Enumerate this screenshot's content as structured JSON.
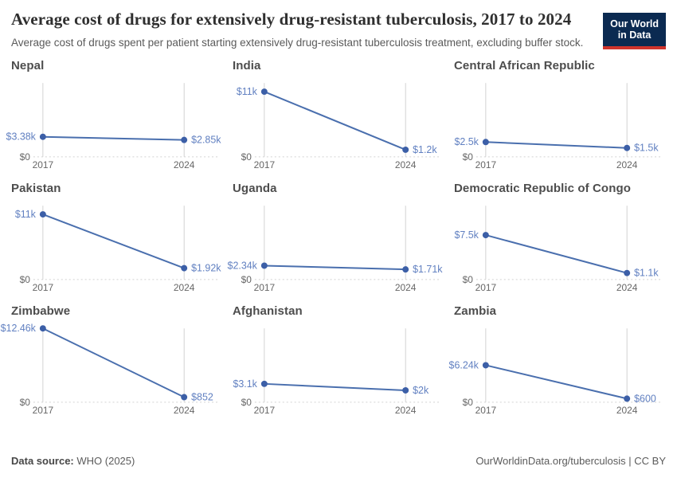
{
  "header": {
    "title": "Average cost of drugs for extensively drug-resistant tuberculosis, 2017 to 2024",
    "subtitle": "Average cost of drugs spent per patient starting extensively drug-resistant tuberculosis treatment, excluding buffer stock."
  },
  "logo": {
    "line1": "Our World",
    "line2": "in Data"
  },
  "footer": {
    "datasource_label": "Data source:",
    "datasource_value": "WHO (2025)",
    "credit_url": "OurWorldinData.org/tuberculosis",
    "credit_separator": " | ",
    "credit_license": "CC BY"
  },
  "chart_data": {
    "type": "line",
    "title": "Average cost of drugs for extensively drug-resistant tuberculosis, 2017 to 2024",
    "x": [
      2017,
      2024
    ],
    "x_labels": [
      "2017",
      "2024"
    ],
    "ylim": [
      0,
      12460
    ],
    "y_zero_label": "$0",
    "unit": "US$ per patient",
    "grid": "zero-line-only",
    "facets": [
      {
        "country": "Nepal",
        "values": [
          3380,
          2850
        ],
        "labels": [
          "$3.38k",
          "$2.85k"
        ]
      },
      {
        "country": "India",
        "values": [
          11000,
          1200
        ],
        "labels": [
          "$11k",
          "$1.2k"
        ]
      },
      {
        "country": "Central African Republic",
        "values": [
          2500,
          1500
        ],
        "labels": [
          "$2.5k",
          "$1.5k"
        ]
      },
      {
        "country": "Pakistan",
        "values": [
          11000,
          1920
        ],
        "labels": [
          "$11k",
          "$1.92k"
        ]
      },
      {
        "country": "Uganda",
        "values": [
          2340,
          1710
        ],
        "labels": [
          "$2.34k",
          "$1.71k"
        ]
      },
      {
        "country": "Democratic Republic of Congo",
        "values": [
          7500,
          1100
        ],
        "labels": [
          "$7.5k",
          "$1.1k"
        ]
      },
      {
        "country": "Zimbabwe",
        "values": [
          12460,
          852
        ],
        "labels": [
          "$12.46k",
          "$852"
        ]
      },
      {
        "country": "Afghanistan",
        "values": [
          3100,
          2000
        ],
        "labels": [
          "$3.1k",
          "$2k"
        ]
      },
      {
        "country": "Zambia",
        "values": [
          6240,
          600
        ],
        "labels": [
          "$6.24k",
          "$600"
        ]
      }
    ],
    "colors": {
      "line": "#4a6fae",
      "point": "#3c5fa7",
      "value_label": "#6180c1",
      "grid": "#d2d2d2",
      "axis_text": "#666666",
      "logo_bg": "#0b2a51",
      "logo_red": "#d0342c"
    }
  }
}
